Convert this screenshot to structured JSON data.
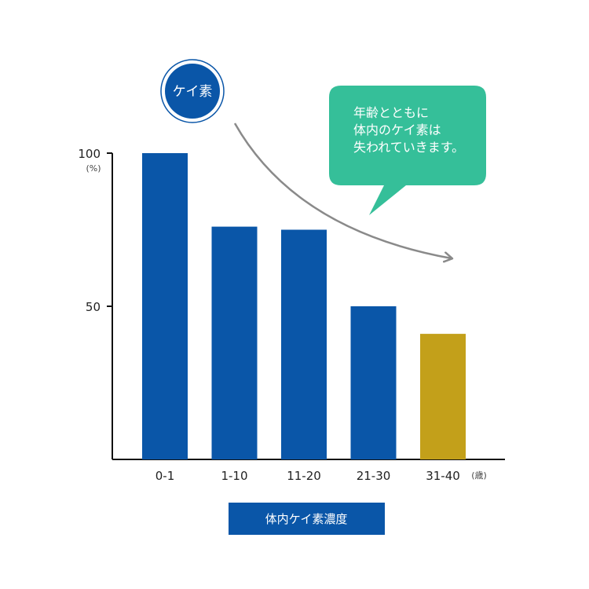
{
  "chart_data": {
    "type": "bar",
    "categories": [
      "0-1",
      "1-10",
      "11-20",
      "21-30",
      "31-40"
    ],
    "values": [
      100,
      76,
      75,
      50,
      41
    ],
    "ylim": [
      0,
      100
    ],
    "yticks": [
      "100",
      "50"
    ],
    "y_unit": "(%)",
    "x_unit": "(歳)",
    "bar_colors": [
      "#0a56a8",
      "#0a56a8",
      "#0a56a8",
      "#0a56a8",
      "#c3a01a"
    ],
    "grid": false
  },
  "badge": {
    "label": "ケイ素",
    "color": "#0a56a8"
  },
  "callout": {
    "lines": [
      "年齢とともに",
      "体内のケイ素は",
      "失われていきます。"
    ],
    "color": "#35bf99"
  },
  "legend": {
    "label": "体内ケイ素濃度",
    "color": "#0a56a8"
  }
}
